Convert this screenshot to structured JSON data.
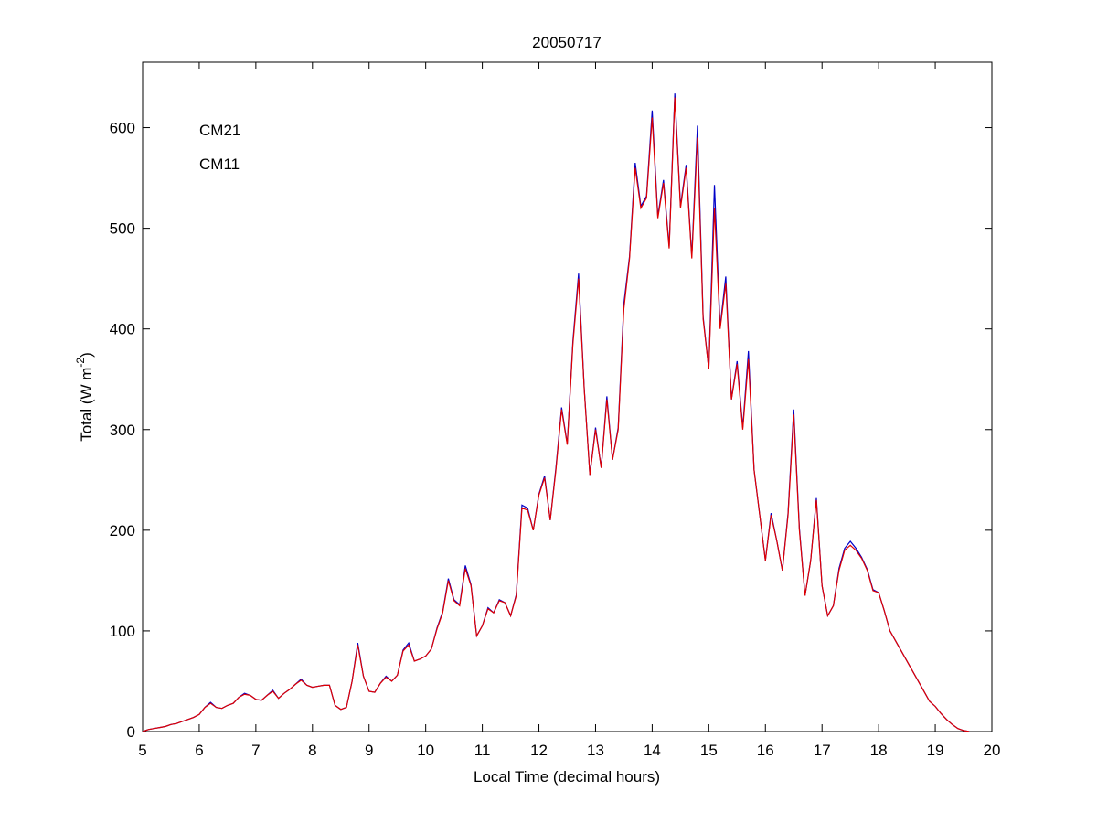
{
  "chart_data": {
    "type": "line",
    "title": "20050717",
    "xlabel": "Local Time (decimal hours)",
    "ylabel": [
      "Total (W m",
      "-2",
      ")"
    ],
    "x": [
      5.0,
      5.1,
      5.2,
      5.3,
      5.4,
      5.5,
      5.6,
      5.7,
      5.8,
      5.9,
      6.0,
      6.1,
      6.2,
      6.3,
      6.4,
      6.5,
      6.6,
      6.7,
      6.8,
      6.9,
      7.0,
      7.1,
      7.2,
      7.3,
      7.4,
      7.5,
      7.6,
      7.7,
      7.8,
      7.9,
      8.0,
      8.1,
      8.2,
      8.3,
      8.4,
      8.5,
      8.6,
      8.7,
      8.8,
      8.9,
      9.0,
      9.1,
      9.2,
      9.3,
      9.4,
      9.5,
      9.6,
      9.7,
      9.8,
      9.9,
      10.0,
      10.1,
      10.2,
      10.3,
      10.4,
      10.5,
      10.6,
      10.7,
      10.8,
      10.9,
      11.0,
      11.1,
      11.2,
      11.3,
      11.4,
      11.5,
      11.6,
      11.7,
      11.8,
      11.9,
      12.0,
      12.1,
      12.2,
      12.3,
      12.4,
      12.5,
      12.6,
      12.7,
      12.8,
      12.9,
      13.0,
      13.1,
      13.2,
      13.3,
      13.4,
      13.5,
      13.6,
      13.7,
      13.8,
      13.9,
      14.0,
      14.1,
      14.2,
      14.3,
      14.4,
      14.5,
      14.6,
      14.7,
      14.8,
      14.9,
      15.0,
      15.1,
      15.2,
      15.3,
      15.4,
      15.5,
      15.6,
      15.7,
      15.8,
      15.9,
      16.0,
      16.1,
      16.2,
      16.3,
      16.4,
      16.5,
      16.6,
      16.7,
      16.8,
      16.9,
      17.0,
      17.1,
      17.2,
      17.3,
      17.4,
      17.5,
      17.6,
      17.7,
      17.8,
      17.9,
      18.0,
      18.1,
      18.2,
      18.3,
      18.4,
      18.5,
      18.6,
      18.7,
      18.8,
      18.9,
      19.0,
      19.1,
      19.2,
      19.3,
      19.4,
      19.5,
      19.6
    ],
    "series": [
      {
        "name": "CM21",
        "color": "#0000c8",
        "values": [
          0,
          2,
          3,
          4,
          5,
          7,
          8,
          10,
          12,
          14,
          17,
          24,
          29,
          24,
          23,
          26,
          28,
          34,
          38,
          36,
          32,
          31,
          36,
          41,
          33,
          38,
          42,
          47,
          52,
          46,
          44,
          45,
          46,
          46,
          26,
          22,
          24,
          50,
          88,
          55,
          40,
          39,
          48,
          55,
          50,
          56,
          81,
          88,
          70,
          72,
          75,
          82,
          103,
          119,
          152,
          131,
          126,
          165,
          146,
          95,
          105,
          123,
          118,
          131,
          128,
          115,
          136,
          225,
          222,
          200,
          236,
          254,
          210,
          262,
          322,
          286,
          388,
          455,
          341,
          255,
          302,
          262,
          333,
          270,
          302,
          425,
          472,
          565,
          522,
          532,
          617,
          512,
          548,
          482,
          634,
          522,
          563,
          472,
          602,
          412,
          360,
          543,
          402,
          452,
          330,
          368,
          302,
          378,
          260,
          215,
          170,
          217,
          190,
          160,
          217,
          320,
          202,
          135,
          170,
          232,
          145,
          115,
          125,
          162,
          182,
          189,
          182,
          173,
          161,
          141,
          138,
          120,
          100,
          90,
          80,
          70,
          60,
          50,
          40,
          30,
          25,
          18,
          12,
          7,
          3,
          1,
          0
        ]
      },
      {
        "name": "CM11",
        "color": "#e00000",
        "values": [
          0,
          2,
          3,
          4,
          5,
          7,
          8,
          10,
          12,
          14,
          17,
          24,
          28,
          24,
          23,
          26,
          28,
          34,
          37,
          36,
          32,
          31,
          36,
          40,
          33,
          38,
          42,
          47,
          51,
          46,
          44,
          45,
          46,
          46,
          26,
          22,
          24,
          50,
          86,
          55,
          40,
          39,
          48,
          54,
          50,
          56,
          80,
          86,
          70,
          72,
          75,
          82,
          102,
          118,
          150,
          130,
          125,
          162,
          145,
          95,
          105,
          122,
          118,
          130,
          128,
          115,
          135,
          222,
          220,
          200,
          235,
          252,
          210,
          260,
          320,
          285,
          385,
          450,
          340,
          255,
          300,
          262,
          330,
          270,
          300,
          420,
          470,
          560,
          520,
          530,
          610,
          510,
          545,
          480,
          630,
          520,
          560,
          470,
          590,
          410,
          360,
          520,
          400,
          445,
          330,
          365,
          300,
          370,
          260,
          215,
          170,
          215,
          190,
          160,
          215,
          315,
          200,
          135,
          170,
          230,
          145,
          115,
          125,
          160,
          180,
          185,
          180,
          172,
          160,
          140,
          138,
          120,
          100,
          90,
          80,
          70,
          60,
          50,
          40,
          30,
          25,
          18,
          12,
          7,
          3,
          1,
          0
        ]
      }
    ],
    "xlim": [
      5,
      20
    ],
    "xticks": [
      5,
      6,
      7,
      8,
      9,
      10,
      11,
      12,
      13,
      14,
      15,
      16,
      17,
      18,
      19,
      20
    ],
    "ylim": [
      0,
      665
    ],
    "yticks": [
      0,
      100,
      200,
      300,
      400,
      500,
      600
    ],
    "legend": "upper-left",
    "grid": false
  }
}
